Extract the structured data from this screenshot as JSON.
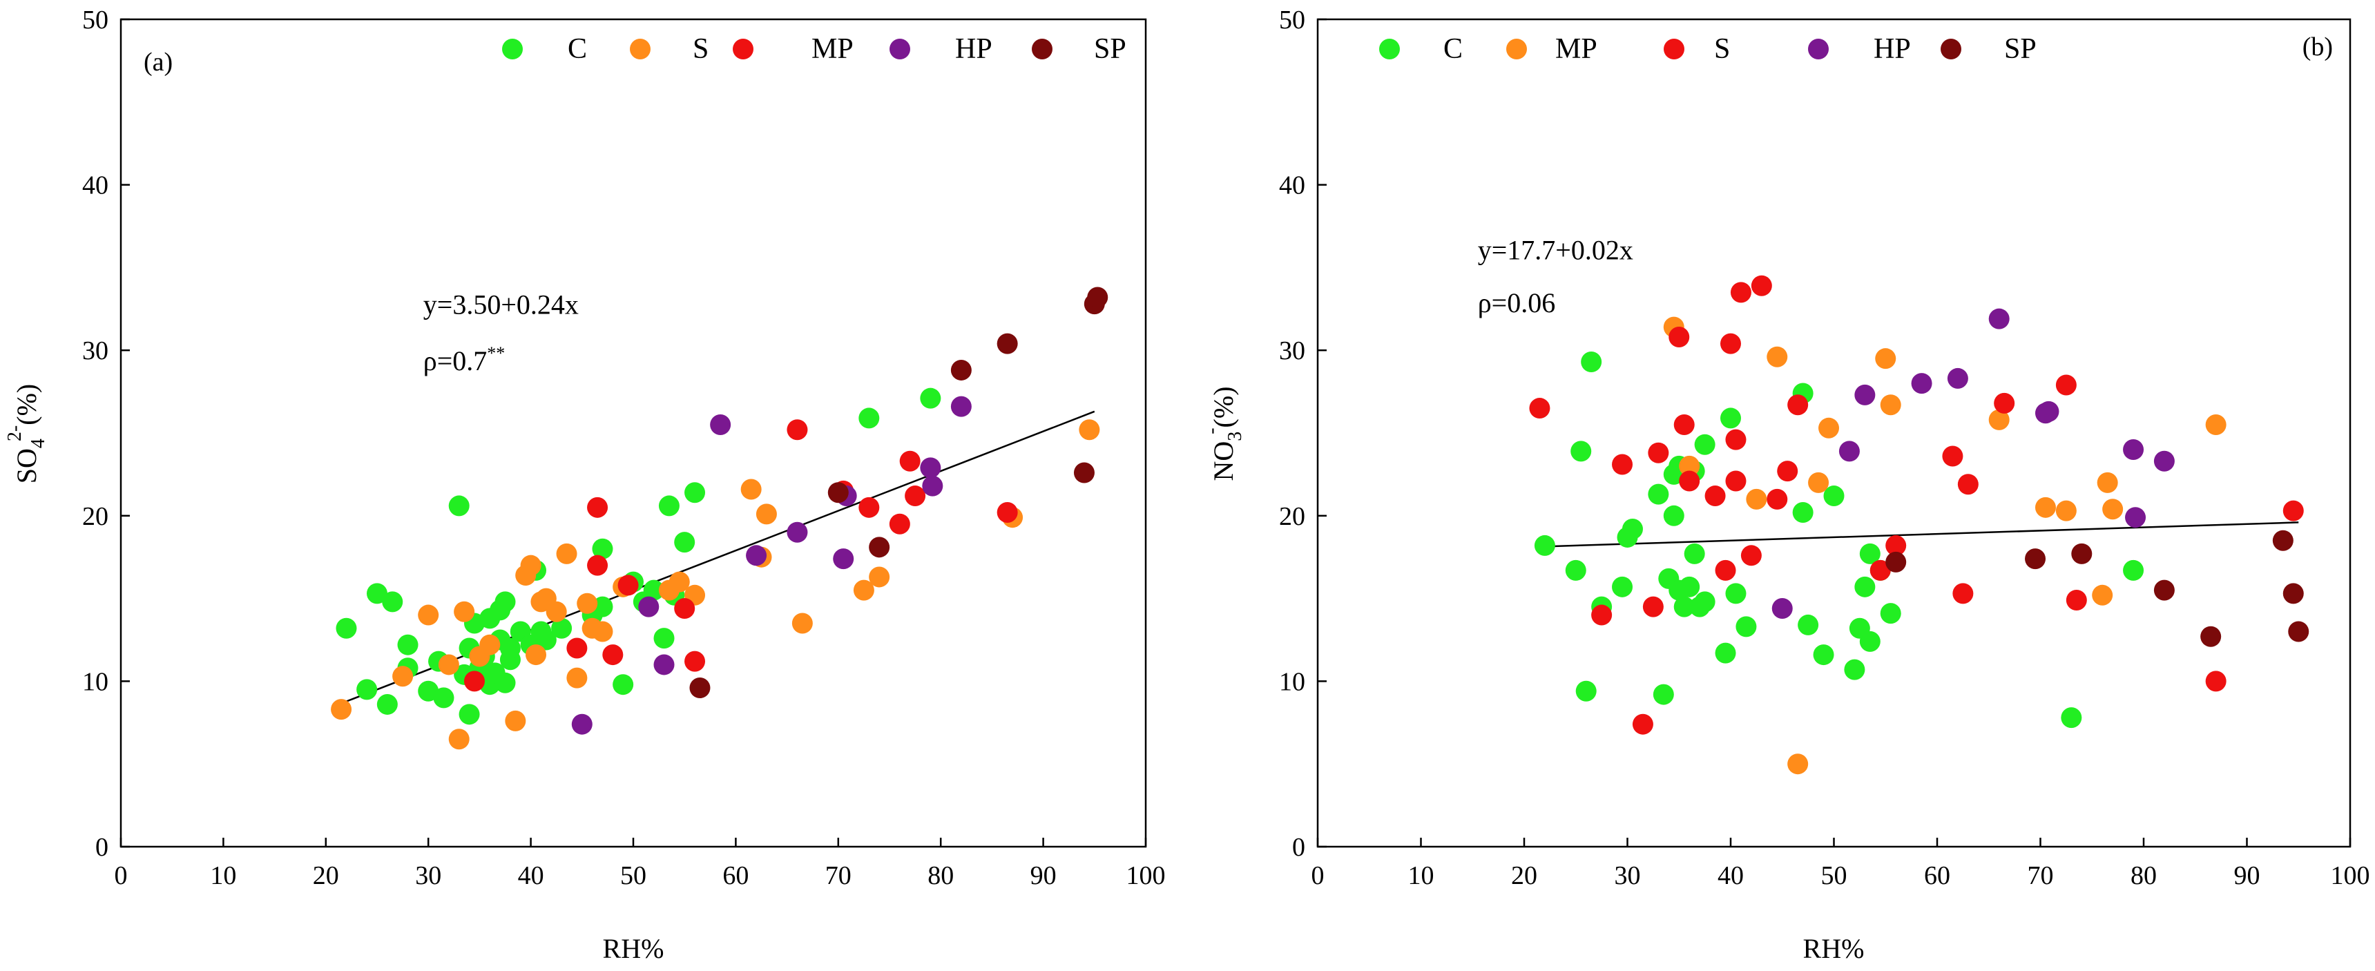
{
  "colors": {
    "C": "#22ee22",
    "S": "#ff8c1a",
    "MP": "#ee1111",
    "HP": "#7a1890",
    "SP": "#7a0a0a",
    "axis": "#000000"
  },
  "chart_data": [
    {
      "type": "scatter",
      "panel_label": "(a)",
      "xlabel": "RH%",
      "ylabel": {
        "base": "SO",
        "sub": "4",
        "sup": "2-",
        "unit": "(%)"
      },
      "xlim": [
        0,
        100
      ],
      "ylim": [
        0,
        50
      ],
      "xticks": [
        "0",
        "10",
        "20",
        "30",
        "40",
        "50",
        "60",
        "70",
        "80",
        "90",
        "100"
      ],
      "yticks": [
        "0",
        "10",
        "20",
        "30",
        "40",
        "50"
      ],
      "legend": [
        {
          "key": "C",
          "label": "C"
        },
        {
          "key": "S",
          "label": "S"
        },
        {
          "key": "MP",
          "label": "MP"
        },
        {
          "key": "HP",
          "label": "HP"
        },
        {
          "key": "SP",
          "label": "SP"
        }
      ],
      "annotation": {
        "equation": "y=3.50+0.24x",
        "rho_text": "ρ=0.7",
        "rho_sup": "**",
        "eq_x": 29.5,
        "eq_y": 32.2,
        "rho_y": 28.8
      },
      "regression": {
        "intercept": 3.5,
        "slope": 0.24,
        "x_range": [
          21.5,
          95
        ]
      },
      "series": [
        {
          "name": "C",
          "points": [
            [
              22,
              13.2
            ],
            [
              24,
              9.5
            ],
            [
              25,
              15.3
            ],
            [
              26,
              8.6
            ],
            [
              26.5,
              14.8
            ],
            [
              28,
              12.2
            ],
            [
              28,
              10.8
            ],
            [
              30,
              9.4
            ],
            [
              31,
              11.2
            ],
            [
              31.5,
              9
            ],
            [
              33,
              20.6
            ],
            [
              33.5,
              10.4
            ],
            [
              34,
              8
            ],
            [
              34,
              12
            ],
            [
              34.5,
              13.5
            ],
            [
              35,
              10.8
            ],
            [
              35.5,
              11.5
            ],
            [
              36,
              9.8
            ],
            [
              36,
              13.8
            ],
            [
              36.5,
              10.5
            ],
            [
              37,
              12.5
            ],
            [
              37,
              14.3
            ],
            [
              37.5,
              9.9
            ],
            [
              37.5,
              14.8
            ],
            [
              38,
              11.3
            ],
            [
              38,
              12
            ],
            [
              39,
              13
            ],
            [
              40,
              12.2
            ],
            [
              40.5,
              16.7
            ],
            [
              41,
              13
            ],
            [
              41.5,
              12.5
            ],
            [
              43,
              13.2
            ],
            [
              46,
              14
            ],
            [
              47,
              18
            ],
            [
              47,
              14.5
            ],
            [
              49,
              9.8
            ],
            [
              50,
              16
            ],
            [
              51,
              14.8
            ],
            [
              52,
              15.5
            ],
            [
              53,
              12.6
            ],
            [
              53.5,
              20.6
            ],
            [
              54,
              15.2
            ],
            [
              55,
              18.4
            ],
            [
              56,
              21.4
            ],
            [
              73,
              25.9
            ],
            [
              79,
              27.1
            ]
          ]
        },
        {
          "name": "S",
          "points": [
            [
              21.5,
              8.3
            ],
            [
              27.5,
              10.3
            ],
            [
              30,
              14
            ],
            [
              32,
              11
            ],
            [
              33,
              6.5
            ],
            [
              33.5,
              14.2
            ],
            [
              35,
              11.5
            ],
            [
              36,
              12.2
            ],
            [
              38.5,
              7.6
            ],
            [
              39.5,
              16.4
            ],
            [
              40,
              17
            ],
            [
              40.5,
              11.6
            ],
            [
              41,
              14.8
            ],
            [
              41.5,
              15
            ],
            [
              42.5,
              14.2
            ],
            [
              43.5,
              17.7
            ],
            [
              44.5,
              10.2
            ],
            [
              45.5,
              14.7
            ],
            [
              46,
              13.2
            ],
            [
              47,
              13
            ],
            [
              49,
              15.7
            ],
            [
              53.5,
              15.5
            ],
            [
              54.5,
              16
            ],
            [
              56,
              15.2
            ],
            [
              61.5,
              21.6
            ],
            [
              62.5,
              17.5
            ],
            [
              63,
              20.1
            ],
            [
              66.5,
              13.5
            ],
            [
              72.5,
              15.5
            ],
            [
              74,
              16.3
            ],
            [
              87,
              19.9
            ],
            [
              94.5,
              25.2
            ]
          ]
        },
        {
          "name": "MP",
          "points": [
            [
              34.5,
              10
            ],
            [
              44.5,
              12
            ],
            [
              46.5,
              20.5
            ],
            [
              46.5,
              17
            ],
            [
              48,
              11.6
            ],
            [
              49.5,
              15.8
            ],
            [
              55,
              14.4
            ],
            [
              56,
              11.2
            ],
            [
              66,
              25.2
            ],
            [
              70.5,
              21.5
            ],
            [
              73,
              20.5
            ],
            [
              76,
              19.5
            ],
            [
              77,
              23.3
            ],
            [
              77.5,
              21.2
            ],
            [
              86.5,
              20.2
            ]
          ]
        },
        {
          "name": "HP",
          "points": [
            [
              45,
              7.4
            ],
            [
              51.5,
              14.5
            ],
            [
              53,
              11
            ],
            [
              58.5,
              25.5
            ],
            [
              62,
              17.6
            ],
            [
              66,
              19
            ],
            [
              70.5,
              17.4
            ],
            [
              70.8,
              21.2
            ],
            [
              79,
              22.9
            ],
            [
              79.2,
              21.8
            ],
            [
              82,
              26.6
            ]
          ]
        },
        {
          "name": "SP",
          "points": [
            [
              56.5,
              9.6
            ],
            [
              70,
              21.4
            ],
            [
              74,
              18.1
            ],
            [
              82,
              28.8
            ],
            [
              86.5,
              30.4
            ],
            [
              94,
              22.6
            ],
            [
              95,
              32.8
            ],
            [
              95.3,
              33.2
            ]
          ]
        }
      ]
    },
    {
      "type": "scatter",
      "panel_label": "(b)",
      "xlabel": "RH%",
      "ylabel": {
        "base": "NO",
        "sub": "3",
        "sup": "-",
        "unit": "(%)"
      },
      "xlim": [
        0,
        100
      ],
      "ylim": [
        0,
        50
      ],
      "xticks": [
        "0",
        "10",
        "20",
        "30",
        "40",
        "50",
        "60",
        "70",
        "80",
        "90",
        "100"
      ],
      "yticks": [
        "0",
        "10",
        "20",
        "30",
        "40",
        "50"
      ],
      "legend": [
        {
          "key": "C",
          "label": "C"
        },
        {
          "key": "S",
          "label": "MP"
        },
        {
          "key": "MP",
          "label": "S"
        },
        {
          "key": "HP",
          "label": "HP"
        },
        {
          "key": "SP",
          "label": "SP"
        }
      ],
      "annotation": {
        "equation": "y=17.7+0.02x",
        "rho_text": "ρ=0.06",
        "rho_sup": "",
        "eq_x": 15.5,
        "eq_y": 35.5,
        "rho_y": 32.3
      },
      "regression": {
        "intercept": 17.7,
        "slope": 0.02,
        "x_range": [
          22,
          95
        ]
      },
      "series": [
        {
          "name": "C",
          "points": [
            [
              22,
              18.2
            ],
            [
              25,
              16.7
            ],
            [
              25.5,
              23.9
            ],
            [
              26,
              9.4
            ],
            [
              26.5,
              29.3
            ],
            [
              27.5,
              14.5
            ],
            [
              29.5,
              15.7
            ],
            [
              30,
              18.7
            ],
            [
              30.5,
              19.2
            ],
            [
              33,
              21.3
            ],
            [
              33.5,
              9.2
            ],
            [
              34,
              16.2
            ],
            [
              34.5,
              22.5
            ],
            [
              34.5,
              20
            ],
            [
              35,
              15.5
            ],
            [
              35,
              23
            ],
            [
              35.5,
              14.5
            ],
            [
              36,
              15.7
            ],
            [
              36.5,
              17.7
            ],
            [
              36.5,
              22.7
            ],
            [
              37,
              14.5
            ],
            [
              37.5,
              24.3
            ],
            [
              37.5,
              14.8
            ],
            [
              39.5,
              11.7
            ],
            [
              40,
              25.9
            ],
            [
              40.5,
              15.3
            ],
            [
              41.5,
              13.3
            ],
            [
              47,
              27.4
            ],
            [
              47,
              20.2
            ],
            [
              47.5,
              13.4
            ],
            [
              49,
              11.6
            ],
            [
              50,
              21.2
            ],
            [
              52,
              10.7
            ],
            [
              52.5,
              13.2
            ],
            [
              53,
              15.7
            ],
            [
              53.5,
              12.4
            ],
            [
              53.5,
              17.7
            ],
            [
              54.5,
              16.7
            ],
            [
              55.5,
              14.1
            ],
            [
              73,
              7.8
            ],
            [
              79,
              16.7
            ]
          ]
        },
        {
          "name": "S",
          "points": [
            [
              34.5,
              31.4
            ],
            [
              36,
              23
            ],
            [
              42.5,
              21
            ],
            [
              44.5,
              29.6
            ],
            [
              46.5,
              5
            ],
            [
              48.5,
              22
            ],
            [
              49.5,
              25.3
            ],
            [
              55,
              29.5
            ],
            [
              55.5,
              26.7
            ],
            [
              66,
              25.8
            ],
            [
              70.5,
              20.5
            ],
            [
              72.5,
              20.3
            ],
            [
              76,
              15.2
            ],
            [
              76.5,
              22
            ],
            [
              77,
              20.4
            ],
            [
              87,
              25.5
            ]
          ]
        },
        {
          "name": "MP",
          "points": [
            [
              21.5,
              26.5
            ],
            [
              27.5,
              14
            ],
            [
              29.5,
              23.1
            ],
            [
              31.5,
              7.4
            ],
            [
              32.5,
              14.5
            ],
            [
              33,
              23.8
            ],
            [
              35,
              30.8
            ],
            [
              35.5,
              25.5
            ],
            [
              36,
              22.1
            ],
            [
              38.5,
              21.2
            ],
            [
              39.5,
              16.7
            ],
            [
              40,
              30.4
            ],
            [
              40.5,
              24.6
            ],
            [
              40.5,
              22.1
            ],
            [
              41,
              33.5
            ],
            [
              42,
              17.6
            ],
            [
              43,
              33.9
            ],
            [
              44.5,
              21
            ],
            [
              45.5,
              22.7
            ],
            [
              46.5,
              26.7
            ],
            [
              54.5,
              16.7
            ],
            [
              56,
              18.2
            ],
            [
              61.5,
              23.6
            ],
            [
              62.5,
              15.3
            ],
            [
              63,
              21.9
            ],
            [
              66.5,
              26.8
            ],
            [
              72.5,
              27.9
            ],
            [
              73.5,
              14.9
            ],
            [
              87,
              10
            ],
            [
              94.5,
              20.3
            ]
          ]
        },
        {
          "name": "HP",
          "points": [
            [
              45,
              14.4
            ],
            [
              51.5,
              23.9
            ],
            [
              53,
              27.3
            ],
            [
              58.5,
              28
            ],
            [
              62,
              28.3
            ],
            [
              66,
              31.9
            ],
            [
              70.5,
              26.2
            ],
            [
              70.8,
              26.3
            ],
            [
              79,
              24
            ],
            [
              79.2,
              19.9
            ],
            [
              82,
              23.3
            ]
          ]
        },
        {
          "name": "SP",
          "points": [
            [
              56,
              17.2
            ],
            [
              69.5,
              17.4
            ],
            [
              74,
              17.7
            ],
            [
              82,
              15.5
            ],
            [
              86.5,
              12.7
            ],
            [
              93.5,
              18.5
            ],
            [
              94.5,
              15.3
            ],
            [
              95,
              13
            ]
          ]
        }
      ]
    }
  ]
}
